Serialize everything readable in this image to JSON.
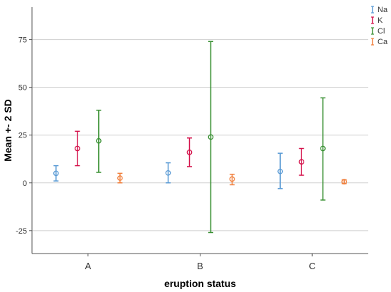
{
  "chart_data": {
    "type": "errorbar",
    "xlabel": "eruption status",
    "ylabel": "Mean +- 2 SD",
    "categories": [
      "A",
      "B",
      "C"
    ],
    "ylim": [
      -37,
      92
    ],
    "yticks": [
      -25,
      0,
      25,
      50,
      75
    ],
    "ytick_labels": [
      "-25",
      "0",
      "25",
      "50",
      "75"
    ],
    "grid": "horizontal",
    "legend_position": "top-right",
    "series": [
      {
        "name": "Na",
        "color": "#5b9bd5",
        "mean": [
          5.0,
          5.2,
          6.0
        ],
        "lower": [
          1.0,
          0.0,
          -3.0
        ],
        "upper": [
          9.0,
          10.5,
          15.5
        ]
      },
      {
        "name": "K",
        "color": "#d4114a",
        "mean": [
          18.0,
          16.0,
          11.0
        ],
        "lower": [
          9.0,
          8.5,
          4.0
        ],
        "upper": [
          27.0,
          23.5,
          18.0
        ]
      },
      {
        "name": "Cl",
        "color": "#3a9134",
        "mean": [
          22.0,
          24.0,
          18.0
        ],
        "lower": [
          5.5,
          -26.0,
          -9.0
        ],
        "upper": [
          38.0,
          74.0,
          44.5
        ]
      },
      {
        "name": "Ca",
        "color": "#f07f3c",
        "mean": [
          2.5,
          2.0,
          0.6
        ],
        "lower": [
          0.0,
          -1.0,
          -0.4
        ],
        "upper": [
          5.0,
          4.5,
          1.6
        ]
      }
    ]
  }
}
